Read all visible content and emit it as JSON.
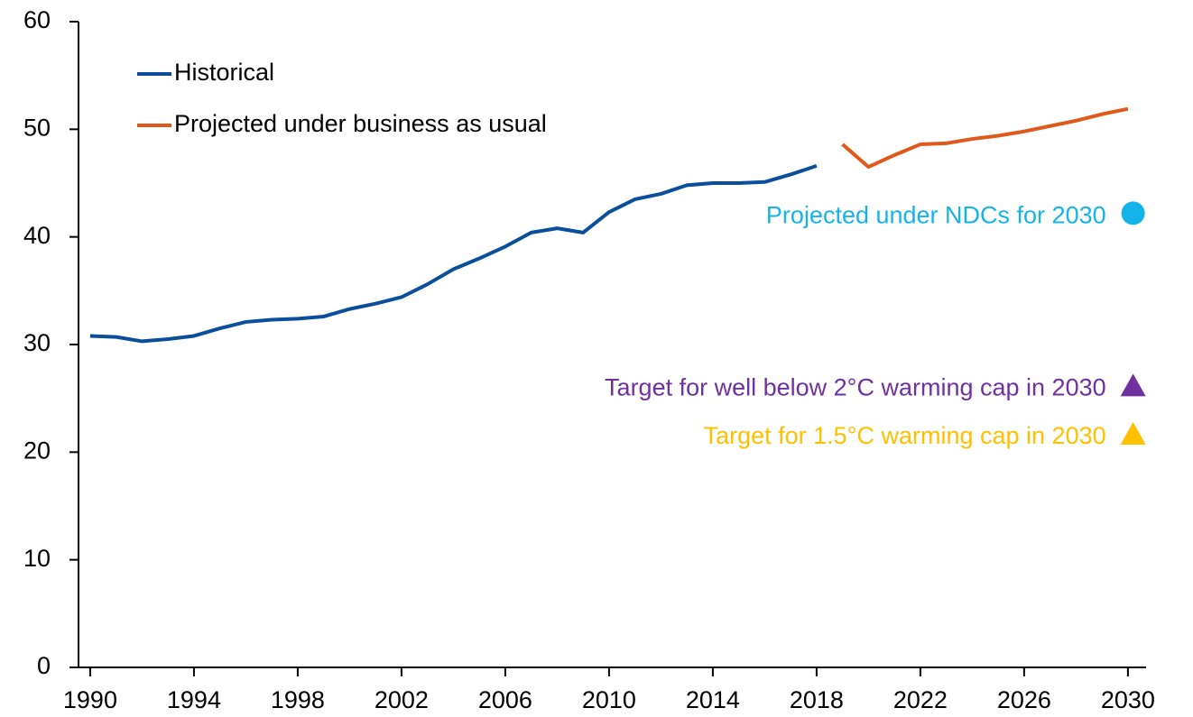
{
  "chart_data": {
    "type": "line",
    "x": [
      1990,
      1991,
      1992,
      1993,
      1994,
      1995,
      1996,
      1997,
      1998,
      1999,
      2000,
      2001,
      2002,
      2003,
      2004,
      2005,
      2006,
      2007,
      2008,
      2009,
      2010,
      2011,
      2012,
      2013,
      2014,
      2015,
      2016,
      2017,
      2018,
      2019,
      2020,
      2021,
      2022,
      2023,
      2024,
      2025,
      2026,
      2027,
      2028,
      2029,
      2030
    ],
    "series": [
      {
        "name": "Historical",
        "color": "#0b4f9c",
        "values": [
          30.8,
          30.7,
          30.3,
          30.5,
          30.8,
          31.5,
          32.1,
          32.3,
          32.4,
          32.6,
          33.3,
          33.8,
          34.4,
          35.6,
          37.0,
          38.0,
          39.1,
          40.4,
          40.8,
          40.4,
          42.3,
          43.5,
          44.0,
          44.8,
          45.0,
          45.0,
          45.1,
          45.8,
          46.6,
          null,
          null,
          null,
          null,
          null,
          null,
          null,
          null,
          null,
          null,
          null,
          null
        ]
      },
      {
        "name": "Projected under business as usual",
        "color": "#e0581c",
        "values": [
          null,
          null,
          null,
          null,
          null,
          null,
          null,
          null,
          null,
          null,
          null,
          null,
          null,
          null,
          null,
          null,
          null,
          null,
          null,
          null,
          null,
          null,
          null,
          null,
          null,
          null,
          null,
          null,
          null,
          48.6,
          46.5,
          47.6,
          48.6,
          48.7,
          49.1,
          49.4,
          49.8,
          50.3,
          50.8,
          51.4,
          51.9
        ]
      }
    ],
    "markers": [
      {
        "name": "Projected under NDCs for 2030",
        "color": "#14b4ea",
        "shape": "circle",
        "x": 2030.2,
        "value": 42.2
      },
      {
        "name": "Target for well below 2°C warming cap in 2030",
        "color": "#7030a0",
        "shape": "triangle",
        "x": 2030.2,
        "value": 26.2
      },
      {
        "name": "Target for 1.5°C warming cap in 2030",
        "color": "#ffc000",
        "shape": "triangle",
        "x": 2030.2,
        "value": 21.7
      }
    ],
    "xlim": [
      1989.55,
      2030.7
    ],
    "xticks": [
      1990,
      1994,
      1998,
      2002,
      2006,
      2010,
      2014,
      2018,
      2022,
      2026,
      2030
    ],
    "ylim": [
      0,
      60
    ],
    "yticks": [
      0,
      10,
      20,
      30,
      40,
      50,
      60
    ],
    "legend": "upper left"
  }
}
